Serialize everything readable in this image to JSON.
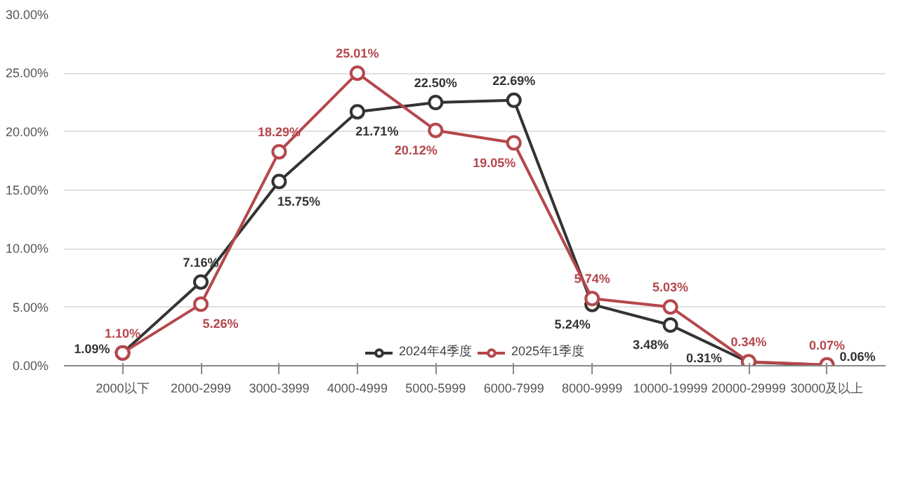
{
  "chart_data": {
    "type": "line",
    "categories": [
      "2000以下",
      "2000-2999",
      "3000-3999",
      "4000-4999",
      "5000-5999",
      "6000-7999",
      "8000-9999",
      "10000-19999",
      "20000-29999",
      "30000及以上"
    ],
    "series": [
      {
        "name": "2024年4季度",
        "color": "#333333",
        "values": [
          1.09,
          7.16,
          15.75,
          21.71,
          22.5,
          22.69,
          5.24,
          3.48,
          0.31,
          0.06
        ],
        "value_labels": [
          "1.09%",
          "7.16%",
          "15.75%",
          "21.71%",
          "22.50%",
          "22.69%",
          "5.24%",
          "3.48%",
          "0.31%",
          "0.06%"
        ]
      },
      {
        "name": "2025年1季度",
        "color": "#b5474c",
        "values": [
          1.1,
          5.26,
          18.29,
          25.01,
          20.12,
          19.05,
          5.74,
          5.03,
          0.34,
          0.07
        ],
        "value_labels": [
          "1.10%",
          "5.26%",
          "18.29%",
          "25.01%",
          "20.12%",
          "19.05%",
          "5.74%",
          "5.03%",
          "0.34%",
          "0.07%"
        ]
      }
    ],
    "ylim": [
      0,
      30
    ],
    "yticks": [
      {
        "value": 0,
        "label": "0.00%"
      },
      {
        "value": 5,
        "label": "5.00%"
      },
      {
        "value": 10,
        "label": "10.00%"
      },
      {
        "value": 15,
        "label": "15.00%"
      },
      {
        "value": 20,
        "label": "20.00%"
      },
      {
        "value": 25,
        "label": "25.00%"
      },
      {
        "value": 30,
        "label": "30.00%"
      }
    ],
    "grid": "y",
    "legend": "bottom",
    "marker": "circle",
    "line_style": "solid"
  }
}
